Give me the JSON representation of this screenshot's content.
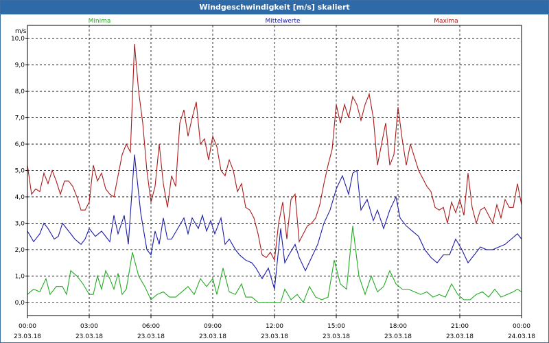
{
  "window": {
    "title": "Windgeschwindigkeit [m/s] skaliert"
  },
  "chart_data": {
    "type": "line",
    "title": "Windgeschwindigkeit [m/s] skaliert",
    "ylabel": "m/s",
    "ylim": [
      -0.5,
      10.5
    ],
    "xlim": [
      0,
      24
    ],
    "y_ticks": [
      "0,0",
      "1,0",
      "2,0",
      "3,0",
      "4,0",
      "5,0",
      "6,0",
      "7,0",
      "8,0",
      "9,0",
      "10,0"
    ],
    "x_ticks": [
      {
        "time": "00:00",
        "date": "23.03.18"
      },
      {
        "time": "03:00",
        "date": "23.03.18"
      },
      {
        "time": "06:00",
        "date": "23.03.18"
      },
      {
        "time": "09:00",
        "date": "23.03.18"
      },
      {
        "time": "12:00",
        "date": "23.03.18"
      },
      {
        "time": "15:00",
        "date": "23.03.18"
      },
      {
        "time": "18:00",
        "date": "23.03.18"
      },
      {
        "time": "21:00",
        "date": "23.03.18"
      },
      {
        "time": "00:00",
        "date": "24.03.18"
      }
    ],
    "grid": true,
    "legend_position": "top",
    "series": [
      {
        "name": "Minima",
        "color": "#22aa22",
        "points": [
          [
            0,
            0.3
          ],
          [
            0.3,
            0.5
          ],
          [
            0.6,
            0.4
          ],
          [
            0.9,
            0.9
          ],
          [
            1.1,
            0.3
          ],
          [
            1.4,
            0.6
          ],
          [
            1.7,
            0.6
          ],
          [
            1.9,
            0.3
          ],
          [
            2.1,
            1.2
          ],
          [
            2.4,
            1.0
          ],
          [
            2.7,
            0.7
          ],
          [
            3.0,
            0.3
          ],
          [
            3.2,
            0.3
          ],
          [
            3.4,
            1.0
          ],
          [
            3.6,
            0.5
          ],
          [
            3.8,
            1.2
          ],
          [
            4.0,
            0.9
          ],
          [
            4.2,
            0.5
          ],
          [
            4.4,
            1.1
          ],
          [
            4.6,
            0.3
          ],
          [
            4.8,
            0.5
          ],
          [
            5.1,
            1.9
          ],
          [
            5.4,
            1.0
          ],
          [
            5.7,
            0.6
          ],
          [
            6.0,
            0.1
          ],
          [
            6.3,
            0.3
          ],
          [
            6.6,
            0.4
          ],
          [
            6.9,
            0.2
          ],
          [
            7.2,
            0.2
          ],
          [
            7.5,
            0.4
          ],
          [
            7.8,
            0.6
          ],
          [
            8.1,
            0.3
          ],
          [
            8.4,
            0.9
          ],
          [
            8.7,
            0.6
          ],
          [
            9.0,
            0.9
          ],
          [
            9.2,
            0.3
          ],
          [
            9.5,
            1.3
          ],
          [
            9.8,
            0.4
          ],
          [
            10.1,
            0.3
          ],
          [
            10.4,
            0.7
          ],
          [
            10.6,
            0.2
          ],
          [
            10.9,
            0.2
          ],
          [
            11.2,
            0.0
          ],
          [
            11.5,
            0.0
          ],
          [
            11.8,
            0.0
          ],
          [
            12.1,
            0.0
          ],
          [
            12.3,
            0.0
          ],
          [
            12.5,
            0.5
          ],
          [
            12.8,
            0.1
          ],
          [
            13.1,
            0.3
          ],
          [
            13.4,
            0.0
          ],
          [
            13.7,
            0.6
          ],
          [
            14.0,
            0.2
          ],
          [
            14.3,
            0.1
          ],
          [
            14.6,
            0.2
          ],
          [
            14.9,
            1.6
          ],
          [
            15.2,
            0.7
          ],
          [
            15.5,
            0.5
          ],
          [
            15.8,
            2.9
          ],
          [
            16.1,
            1.0
          ],
          [
            16.4,
            0.3
          ],
          [
            16.7,
            1.0
          ],
          [
            17.0,
            0.4
          ],
          [
            17.3,
            0.6
          ],
          [
            17.6,
            1.2
          ],
          [
            17.9,
            0.7
          ],
          [
            18.2,
            0.5
          ],
          [
            18.5,
            0.5
          ],
          [
            18.8,
            0.4
          ],
          [
            19.1,
            0.3
          ],
          [
            19.4,
            0.4
          ],
          [
            19.7,
            0.2
          ],
          [
            20.0,
            0.3
          ],
          [
            20.3,
            0.2
          ],
          [
            20.6,
            0.7
          ],
          [
            20.9,
            0.3
          ],
          [
            21.2,
            0.1
          ],
          [
            21.5,
            0.1
          ],
          [
            21.8,
            0.3
          ],
          [
            22.1,
            0.4
          ],
          [
            22.4,
            0.2
          ],
          [
            22.7,
            0.5
          ],
          [
            23.0,
            0.2
          ],
          [
            23.3,
            0.3
          ],
          [
            23.6,
            0.4
          ],
          [
            23.8,
            0.5
          ],
          [
            24.0,
            0.4
          ]
        ]
      },
      {
        "name": "Mittelwerte",
        "color": "#1a1aaa",
        "points": [
          [
            0,
            2.7
          ],
          [
            0.3,
            2.3
          ],
          [
            0.6,
            2.6
          ],
          [
            0.8,
            3.0
          ],
          [
            1.0,
            2.8
          ],
          [
            1.3,
            2.4
          ],
          [
            1.5,
            2.5
          ],
          [
            1.7,
            3.0
          ],
          [
            2.0,
            2.7
          ],
          [
            2.3,
            2.4
          ],
          [
            2.6,
            2.2
          ],
          [
            2.8,
            2.4
          ],
          [
            3.0,
            2.8
          ],
          [
            3.3,
            2.5
          ],
          [
            3.6,
            2.7
          ],
          [
            3.8,
            2.5
          ],
          [
            4.0,
            2.3
          ],
          [
            4.2,
            3.3
          ],
          [
            4.4,
            2.6
          ],
          [
            4.7,
            3.3
          ],
          [
            4.9,
            2.2
          ],
          [
            5.2,
            5.6
          ],
          [
            5.5,
            3.4
          ],
          [
            5.8,
            2.0
          ],
          [
            6.0,
            1.8
          ],
          [
            6.2,
            2.7
          ],
          [
            6.4,
            2.2
          ],
          [
            6.6,
            3.2
          ],
          [
            6.8,
            2.4
          ],
          [
            7.0,
            2.4
          ],
          [
            7.3,
            2.8
          ],
          [
            7.6,
            3.2
          ],
          [
            7.8,
            2.6
          ],
          [
            8.0,
            3.2
          ],
          [
            8.3,
            2.8
          ],
          [
            8.5,
            3.3
          ],
          [
            8.7,
            2.7
          ],
          [
            8.9,
            3.1
          ],
          [
            9.1,
            2.6
          ],
          [
            9.4,
            3.2
          ],
          [
            9.6,
            2.2
          ],
          [
            9.8,
            2.4
          ],
          [
            10.1,
            2.0
          ],
          [
            10.3,
            1.8
          ],
          [
            10.6,
            1.6
          ],
          [
            10.9,
            1.5
          ],
          [
            11.1,
            1.3
          ],
          [
            11.4,
            0.9
          ],
          [
            11.7,
            1.3
          ],
          [
            12.0,
            0.5
          ],
          [
            12.3,
            2.8
          ],
          [
            12.5,
            1.5
          ],
          [
            12.7,
            1.8
          ],
          [
            13.0,
            2.2
          ],
          [
            13.2,
            1.7
          ],
          [
            13.5,
            1.2
          ],
          [
            13.8,
            1.7
          ],
          [
            14.1,
            2.2
          ],
          [
            14.4,
            3.0
          ],
          [
            14.7,
            3.5
          ],
          [
            15.0,
            4.3
          ],
          [
            15.3,
            4.8
          ],
          [
            15.6,
            4.1
          ],
          [
            15.8,
            4.9
          ],
          [
            16.0,
            5.0
          ],
          [
            16.2,
            3.5
          ],
          [
            16.5,
            3.9
          ],
          [
            16.8,
            3.1
          ],
          [
            17.0,
            3.5
          ],
          [
            17.3,
            2.8
          ],
          [
            17.6,
            3.5
          ],
          [
            17.9,
            4.0
          ],
          [
            18.1,
            3.2
          ],
          [
            18.4,
            2.9
          ],
          [
            18.7,
            2.7
          ],
          [
            19.0,
            2.5
          ],
          [
            19.3,
            2.0
          ],
          [
            19.6,
            1.7
          ],
          [
            19.9,
            1.5
          ],
          [
            20.2,
            1.8
          ],
          [
            20.5,
            1.8
          ],
          [
            20.8,
            2.4
          ],
          [
            21.1,
            2.0
          ],
          [
            21.4,
            1.5
          ],
          [
            21.7,
            1.8
          ],
          [
            22.0,
            2.1
          ],
          [
            22.3,
            2.0
          ],
          [
            22.6,
            2.0
          ],
          [
            22.9,
            2.1
          ],
          [
            23.2,
            2.2
          ],
          [
            23.5,
            2.4
          ],
          [
            23.8,
            2.6
          ],
          [
            24.0,
            2.4
          ]
        ]
      },
      {
        "name": "Maxima",
        "color": "#aa1a1a",
        "points": [
          [
            0,
            5.2
          ],
          [
            0.2,
            4.1
          ],
          [
            0.4,
            4.3
          ],
          [
            0.6,
            4.2
          ],
          [
            0.8,
            4.9
          ],
          [
            1.0,
            4.5
          ],
          [
            1.2,
            5.0
          ],
          [
            1.4,
            4.6
          ],
          [
            1.6,
            4.1
          ],
          [
            1.8,
            4.6
          ],
          [
            2.0,
            4.6
          ],
          [
            2.2,
            4.4
          ],
          [
            2.4,
            4.0
          ],
          [
            2.6,
            3.5
          ],
          [
            2.8,
            3.5
          ],
          [
            3.0,
            3.8
          ],
          [
            3.2,
            5.2
          ],
          [
            3.4,
            4.6
          ],
          [
            3.6,
            4.9
          ],
          [
            3.8,
            4.3
          ],
          [
            4.0,
            4.1
          ],
          [
            4.2,
            4.0
          ],
          [
            4.4,
            4.8
          ],
          [
            4.6,
            5.6
          ],
          [
            4.8,
            6.0
          ],
          [
            5.0,
            5.7
          ],
          [
            5.2,
            9.8
          ],
          [
            5.4,
            8.0
          ],
          [
            5.6,
            6.8
          ],
          [
            5.8,
            5.0
          ],
          [
            6.0,
            3.8
          ],
          [
            6.2,
            4.4
          ],
          [
            6.4,
            6.0
          ],
          [
            6.6,
            4.5
          ],
          [
            6.8,
            3.6
          ],
          [
            7.0,
            4.8
          ],
          [
            7.2,
            4.4
          ],
          [
            7.4,
            6.8
          ],
          [
            7.6,
            7.3
          ],
          [
            7.8,
            6.3
          ],
          [
            8.0,
            7.0
          ],
          [
            8.2,
            7.6
          ],
          [
            8.4,
            6.0
          ],
          [
            8.6,
            6.2
          ],
          [
            8.8,
            5.4
          ],
          [
            9.0,
            6.3
          ],
          [
            9.2,
            5.9
          ],
          [
            9.4,
            5.0
          ],
          [
            9.6,
            4.8
          ],
          [
            9.8,
            5.4
          ],
          [
            10.0,
            5.0
          ],
          [
            10.2,
            4.2
          ],
          [
            10.4,
            4.5
          ],
          [
            10.6,
            3.6
          ],
          [
            10.8,
            3.5
          ],
          [
            11.0,
            3.2
          ],
          [
            11.2,
            2.6
          ],
          [
            11.4,
            1.8
          ],
          [
            11.6,
            1.7
          ],
          [
            11.8,
            1.9
          ],
          [
            12.0,
            1.6
          ],
          [
            12.2,
            3.0
          ],
          [
            12.4,
            3.8
          ],
          [
            12.6,
            2.4
          ],
          [
            12.8,
            3.9
          ],
          [
            13.0,
            4.1
          ],
          [
            13.2,
            2.3
          ],
          [
            13.4,
            2.6
          ],
          [
            13.6,
            2.9
          ],
          [
            13.8,
            3.0
          ],
          [
            14.0,
            3.2
          ],
          [
            14.2,
            3.7
          ],
          [
            14.4,
            4.5
          ],
          [
            14.6,
            5.2
          ],
          [
            14.8,
            5.8
          ],
          [
            15.0,
            7.5
          ],
          [
            15.2,
            6.8
          ],
          [
            15.4,
            7.5
          ],
          [
            15.6,
            7.0
          ],
          [
            15.8,
            7.8
          ],
          [
            16.0,
            7.5
          ],
          [
            16.2,
            6.9
          ],
          [
            16.4,
            7.5
          ],
          [
            16.6,
            7.9
          ],
          [
            16.8,
            7.0
          ],
          [
            17.0,
            5.2
          ],
          [
            17.2,
            6.0
          ],
          [
            17.4,
            6.8
          ],
          [
            17.6,
            5.2
          ],
          [
            17.8,
            5.6
          ],
          [
            18.0,
            7.4
          ],
          [
            18.2,
            6.2
          ],
          [
            18.4,
            5.2
          ],
          [
            18.6,
            6.0
          ],
          [
            18.8,
            5.5
          ],
          [
            19.0,
            5.0
          ],
          [
            19.2,
            4.7
          ],
          [
            19.4,
            4.4
          ],
          [
            19.6,
            4.2
          ],
          [
            19.8,
            3.6
          ],
          [
            20.0,
            3.5
          ],
          [
            20.2,
            3.6
          ],
          [
            20.4,
            3.0
          ],
          [
            20.6,
            3.8
          ],
          [
            20.8,
            3.4
          ],
          [
            21.0,
            3.9
          ],
          [
            21.2,
            3.3
          ],
          [
            21.4,
            4.9
          ],
          [
            21.6,
            3.6
          ],
          [
            21.8,
            3.0
          ],
          [
            22.0,
            3.5
          ],
          [
            22.2,
            3.6
          ],
          [
            22.4,
            3.3
          ],
          [
            22.6,
            3.0
          ],
          [
            22.8,
            3.7
          ],
          [
            23.0,
            3.2
          ],
          [
            23.2,
            3.9
          ],
          [
            23.4,
            3.6
          ],
          [
            23.6,
            3.6
          ],
          [
            23.8,
            4.5
          ],
          [
            24.0,
            3.7
          ]
        ]
      }
    ]
  }
}
